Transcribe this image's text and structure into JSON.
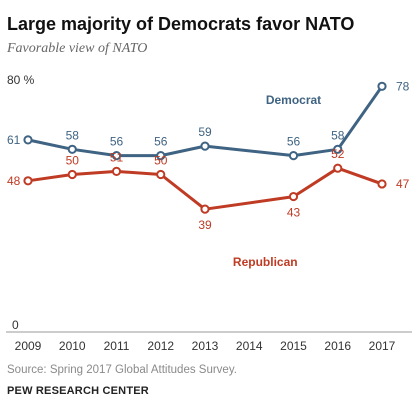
{
  "header": {
    "title": "Large majority of Democrats favor NATO",
    "subtitle": "Favorable view of NATO"
  },
  "chart_data": {
    "type": "line",
    "title": "Large majority of Democrats favor NATO",
    "subtitle": "Favorable view of NATO",
    "x": [
      2009,
      2010,
      2011,
      2012,
      2013,
      2014,
      2015,
      2016,
      2017
    ],
    "x_tick_labels": [
      "2009",
      "2010",
      "2011",
      "2012",
      "2013",
      "2014",
      "2015",
      "2016",
      "2017"
    ],
    "y_tick_labels": [
      "0",
      "80 %"
    ],
    "ylim": [
      0,
      80
    ],
    "grid": false,
    "series": [
      {
        "name": "Democrat",
        "color": "#3f6382",
        "points": [
          [
            2009,
            61
          ],
          [
            2010,
            58
          ],
          [
            2011,
            56
          ],
          [
            2012,
            56
          ],
          [
            2013,
            59
          ],
          [
            2015,
            56
          ],
          [
            2016,
            58
          ],
          [
            2017,
            78
          ]
        ]
      },
      {
        "name": "Republican",
        "color": "#bf3b24",
        "points": [
          [
            2009,
            48
          ],
          [
            2010,
            50
          ],
          [
            2011,
            51
          ],
          [
            2012,
            50
          ],
          [
            2013,
            39
          ],
          [
            2015,
            43
          ],
          [
            2016,
            52
          ],
          [
            2017,
            47
          ]
        ]
      }
    ]
  },
  "footer": {
    "source": "Source: Spring 2017 Global Attitudes Survey.",
    "logo_text": "PEW RESEARCH CENTER"
  }
}
